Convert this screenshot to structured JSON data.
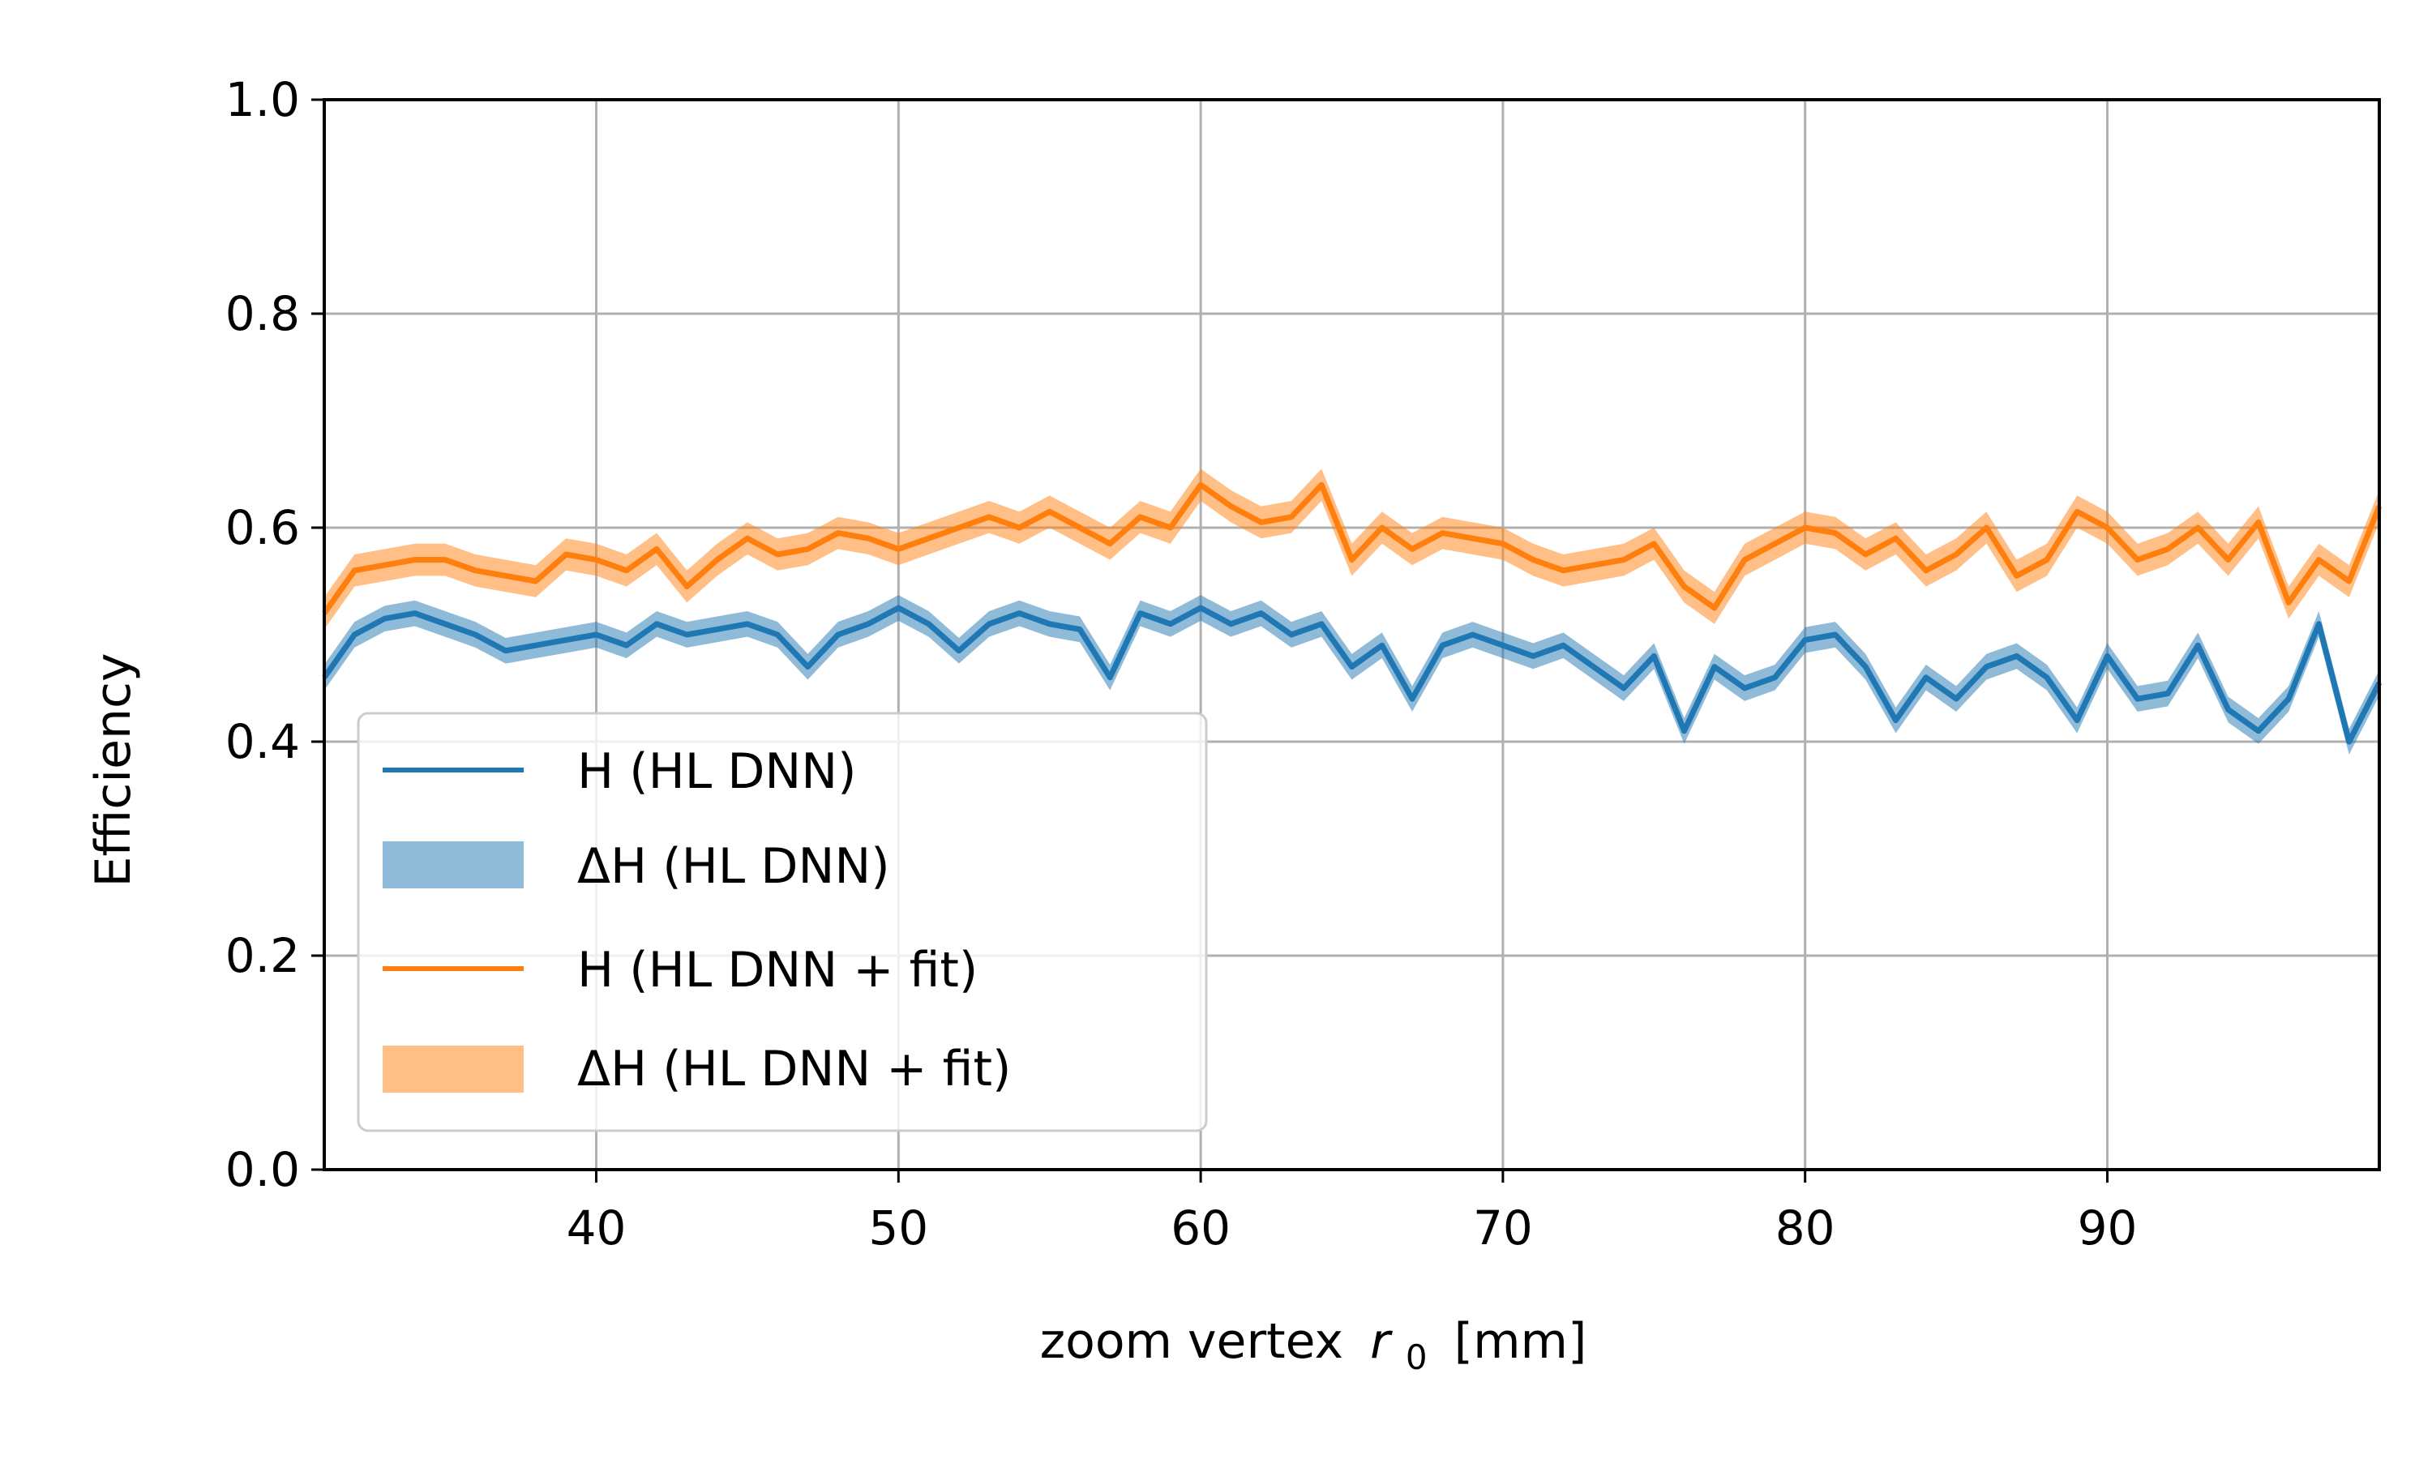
{
  "chart_data": {
    "type": "line",
    "title": "",
    "xlabel": "zoom vertex",
    "xlabel_symbol": "r",
    "xlabel_sub": "0",
    "xlabel_unit": "[mm]",
    "ylabel": "Efficiency",
    "xlim": [
      31,
      99
    ],
    "ylim": [
      0.0,
      1.0
    ],
    "xticks": [
      40,
      50,
      60,
      70,
      80,
      90
    ],
    "xtick_labels": [
      "40",
      "50",
      "60",
      "70",
      "80",
      "90"
    ],
    "yticks": [
      0.0,
      0.2,
      0.4,
      0.6,
      0.8,
      1.0
    ],
    "ytick_labels": [
      "0.0",
      "0.2",
      "0.4",
      "0.6",
      "0.8",
      "1.0"
    ],
    "grid": true,
    "legend_position": "lower-left",
    "legend": [
      {
        "label": "H (HL DNN)",
        "kind": "line",
        "color": "#1f77b4"
      },
      {
        "label": "ΔH (HL DNN)",
        "kind": "band",
        "color": "#1f77b4"
      },
      {
        "label": "H (HL DNN + fit)",
        "kind": "line",
        "color": "#ff7f0e"
      },
      {
        "label": "ΔH (HL DNN + fit)",
        "kind": "band",
        "color": "#ff7f0e"
      }
    ],
    "x": [
      31,
      32,
      33,
      34,
      35,
      36,
      37,
      38,
      39,
      40,
      41,
      42,
      43,
      44,
      45,
      46,
      47,
      48,
      49,
      50,
      51,
      52,
      53,
      54,
      55,
      56,
      57,
      58,
      59,
      60,
      61,
      62,
      63,
      64,
      65,
      66,
      67,
      68,
      69,
      70,
      71,
      72,
      73,
      74,
      75,
      76,
      77,
      78,
      79,
      80,
      81,
      82,
      83,
      84,
      85,
      86,
      87,
      88,
      89,
      90,
      91,
      92,
      93,
      94,
      95,
      96,
      97,
      98,
      99
    ],
    "series": [
      {
        "name": "H (HL DNN)",
        "color": "#1f77b4",
        "band_half_width": 0.012,
        "values": [
          0.46,
          0.5,
          0.515,
          0.52,
          0.51,
          0.5,
          0.485,
          0.49,
          0.495,
          0.5,
          0.49,
          0.51,
          0.5,
          0.505,
          0.51,
          0.5,
          0.47,
          0.5,
          0.51,
          0.525,
          0.51,
          0.485,
          0.51,
          0.52,
          0.51,
          0.505,
          0.46,
          0.52,
          0.51,
          0.525,
          0.51,
          0.52,
          0.5,
          0.51,
          0.47,
          0.49,
          0.44,
          0.49,
          0.5,
          0.49,
          0.48,
          0.49,
          0.47,
          0.45,
          0.48,
          0.41,
          0.47,
          0.45,
          0.46,
          0.495,
          0.5,
          0.47,
          0.42,
          0.46,
          0.44,
          0.47,
          0.48,
          0.46,
          0.42,
          0.48,
          0.44,
          0.445,
          0.49,
          0.43,
          0.41,
          0.44,
          0.51,
          0.4,
          0.455
        ]
      },
      {
        "name": "H (HL DNN + fit)",
        "color": "#ff7f0e",
        "band_half_width": 0.015,
        "values": [
          0.52,
          0.56,
          0.565,
          0.57,
          0.57,
          0.56,
          0.555,
          0.55,
          0.575,
          0.57,
          0.56,
          0.58,
          0.545,
          0.57,
          0.59,
          0.575,
          0.58,
          0.595,
          0.59,
          0.58,
          0.59,
          0.6,
          0.61,
          0.6,
          0.615,
          0.6,
          0.585,
          0.61,
          0.6,
          0.64,
          0.62,
          0.605,
          0.61,
          0.64,
          0.57,
          0.6,
          0.58,
          0.595,
          0.59,
          0.585,
          0.57,
          0.56,
          0.565,
          0.57,
          0.585,
          0.545,
          0.525,
          0.57,
          0.585,
          0.6,
          0.595,
          0.575,
          0.59,
          0.56,
          0.575,
          0.6,
          0.555,
          0.57,
          0.615,
          0.6,
          0.57,
          0.58,
          0.6,
          0.57,
          0.605,
          0.53,
          0.57,
          0.55,
          0.62
        ]
      }
    ]
  }
}
